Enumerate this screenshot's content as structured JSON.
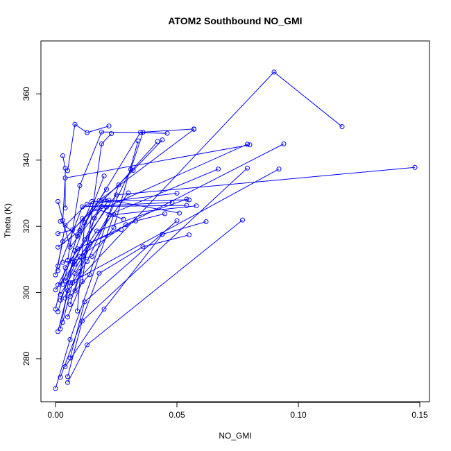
{
  "chart_data": {
    "type": "line",
    "title": "ATOM2 Southbound NO_GMI",
    "xlabel": "NO_GMI",
    "ylabel": "Theta (K)",
    "xlim": [
      -0.006,
      0.154
    ],
    "ylim": [
      267,
      376
    ],
    "x_ticks": [
      0.0,
      0.05,
      0.1,
      0.15
    ],
    "x_tick_labels": [
      "0.00",
      "0.05",
      "0.10",
      "0.15"
    ],
    "y_ticks": [
      280,
      300,
      320,
      340,
      360
    ],
    "y_tick_labels": [
      "280",
      "300",
      "320",
      "340",
      "360"
    ],
    "grid": false,
    "legend": "none",
    "color": "#0000ff",
    "series": [
      {
        "points": [
          [
            0.0,
            271.0
          ],
          [
            0.006,
            285.8
          ],
          [
            0.024,
            323.5
          ],
          [
            0.058,
            326.2
          ]
        ]
      },
      {
        "points": [
          [
            0.002,
            274.4
          ],
          [
            0.018,
            305.8
          ],
          [
            0.036,
            313.8
          ],
          [
            0.055,
            317.4
          ]
        ]
      },
      {
        "points": [
          [
            0.005,
            272.8
          ],
          [
            0.013,
            284.2
          ],
          [
            0.077,
            321.9
          ]
        ]
      },
      {
        "points": [
          [
            0.005,
            274.6
          ],
          [
            0.011,
            291.4
          ],
          [
            0.079,
            337.6
          ]
        ]
      },
      {
        "points": [
          [
            0.004,
            277.6
          ],
          [
            0.02,
            295.0
          ],
          [
            0.044,
            317.6
          ],
          [
            0.062,
            321.4
          ]
        ]
      },
      {
        "points": [
          [
            0.006,
            280.2
          ],
          [
            0.012,
            297.2
          ],
          [
            0.05,
            321.7
          ]
        ]
      },
      {
        "points": [
          [
            0.001,
            288.2
          ],
          [
            0.006,
            302.9
          ],
          [
            0.092,
            337.3
          ]
        ]
      },
      {
        "points": [
          [
            0.002,
            289.0
          ],
          [
            0.005,
            300.6
          ],
          [
            0.09,
            366.6
          ],
          [
            0.118,
            350.1
          ]
        ]
      },
      {
        "points": [
          [
            0.003,
            291.0
          ],
          [
            0.008,
            305.7
          ],
          [
            0.022,
            323.5
          ],
          [
            0.067,
            337.3
          ]
        ]
      },
      {
        "points": [
          [
            0.0,
            295.0
          ],
          [
            0.004,
            307.5
          ],
          [
            0.025,
            329.5
          ],
          [
            0.148,
            337.8
          ]
        ]
      },
      {
        "points": [
          [
            0.001,
            294.2
          ],
          [
            0.007,
            309.2
          ],
          [
            0.021,
            325.8
          ],
          [
            0.079,
            344.8
          ]
        ]
      },
      {
        "points": [
          [
            0.002,
            297.7
          ],
          [
            0.008,
            308.6
          ],
          [
            0.017,
            318.6
          ],
          [
            0.054,
            328.2
          ]
        ]
      },
      {
        "points": [
          [
            0.0,
            300.8
          ],
          [
            0.01,
            310.9
          ],
          [
            0.029,
            320.5
          ],
          [
            0.094,
            344.9
          ]
        ]
      },
      {
        "points": [
          [
            0.001,
            302.3
          ],
          [
            0.009,
            313.2
          ],
          [
            0.033,
            321.6
          ],
          [
            0.045,
            323.8
          ]
        ]
      },
      {
        "points": [
          [
            0.0,
            305.3
          ],
          [
            0.003,
            315.4
          ],
          [
            0.018,
            327.8
          ],
          [
            0.057,
            349.3
          ]
        ]
      },
      {
        "points": [
          [
            0.001,
            306.6
          ],
          [
            0.011,
            325.9
          ],
          [
            0.048,
            327.2
          ]
        ]
      },
      {
        "points": [
          [
            0.001,
            308.0
          ],
          [
            0.004,
            320.3
          ],
          [
            0.013,
            326.7
          ],
          [
            0.05,
            330.0
          ]
        ]
      },
      {
        "points": [
          [
            0.001,
            317.8
          ],
          [
            0.007,
            318.9
          ],
          [
            0.032,
            336.9
          ],
          [
            0.044,
            346.1
          ]
        ]
      },
      {
        "points": [
          [
            0.002,
            321.5
          ],
          [
            0.009,
            317.0
          ],
          [
            0.035,
            348.4
          ],
          [
            0.057,
            349.4
          ]
        ]
      },
      {
        "points": [
          [
            0.001,
            327.5
          ],
          [
            0.006,
            313.7
          ],
          [
            0.019,
            326.0
          ],
          [
            0.054,
            326.3
          ]
        ]
      },
      {
        "points": [
          [
            0.003,
            321.8
          ],
          [
            0.004,
            334.6
          ],
          [
            0.08,
            344.6
          ]
        ]
      },
      {
        "points": [
          [
            0.003,
            341.3
          ],
          [
            0.004,
            337.6
          ],
          [
            0.004,
            325.5
          ]
        ]
      },
      {
        "points": [
          [
            0.005,
            336.8
          ],
          [
            0.008,
            350.8
          ],
          [
            0.013,
            348.3
          ],
          [
            0.022,
            350.3
          ]
        ]
      },
      {
        "points": [
          [
            0.004,
            298.3
          ],
          [
            0.008,
            312.6
          ],
          [
            0.02,
            335.2
          ]
        ]
      },
      {
        "points": [
          [
            0.005,
            309.7
          ],
          [
            0.01,
            332.3
          ],
          [
            0.019,
            348.5
          ],
          [
            0.046,
            348.1
          ]
        ]
      },
      {
        "points": [
          [
            0.005,
            292.6
          ],
          [
            0.011,
            303.3
          ],
          [
            0.019,
            344.9
          ],
          [
            0.023,
            348.0
          ]
        ]
      },
      {
        "points": [
          [
            0.006,
            298.8
          ],
          [
            0.014,
            305.4
          ],
          [
            0.026,
            332.5
          ],
          [
            0.042,
            345.6
          ]
        ]
      },
      {
        "points": [
          [
            0.007,
            303.0
          ],
          [
            0.013,
            309.4
          ],
          [
            0.031,
            337.2
          ],
          [
            0.036,
            348.4
          ]
        ]
      },
      {
        "points": [
          [
            0.002,
            299.4
          ],
          [
            0.012,
            312.0
          ],
          [
            0.03,
            330.1
          ]
        ]
      },
      {
        "points": [
          [
            0.003,
            309.1
          ],
          [
            0.015,
            310.9
          ],
          [
            0.024,
            319.6
          ],
          [
            0.034,
            345.8
          ]
        ]
      },
      {
        "points": [
          [
            0.006,
            296.4
          ],
          [
            0.01,
            306.3
          ],
          [
            0.016,
            322.5
          ],
          [
            0.022,
            327.9
          ]
        ]
      },
      {
        "points": [
          [
            0.004,
            303.5
          ],
          [
            0.012,
            315.9
          ],
          [
            0.02,
            328.2
          ],
          [
            0.051,
            324.0
          ]
        ]
      },
      {
        "points": [
          [
            0.009,
            294.4
          ],
          [
            0.012,
            321.1
          ],
          [
            0.021,
            331.2
          ]
        ]
      },
      {
        "points": [
          [
            0.001,
            313.7
          ],
          [
            0.01,
            318.7
          ],
          [
            0.015,
            327.5
          ],
          [
            0.055,
            328.0
          ]
        ]
      },
      {
        "points": [
          [
            0.008,
            300.5
          ],
          [
            0.014,
            315.0
          ],
          [
            0.027,
            319.0
          ]
        ]
      },
      {
        "points": [
          [
            0.003,
            302.5
          ],
          [
            0.011,
            322.3
          ],
          [
            0.017,
            325.3
          ],
          [
            0.028,
            322.1
          ]
        ]
      }
    ]
  }
}
